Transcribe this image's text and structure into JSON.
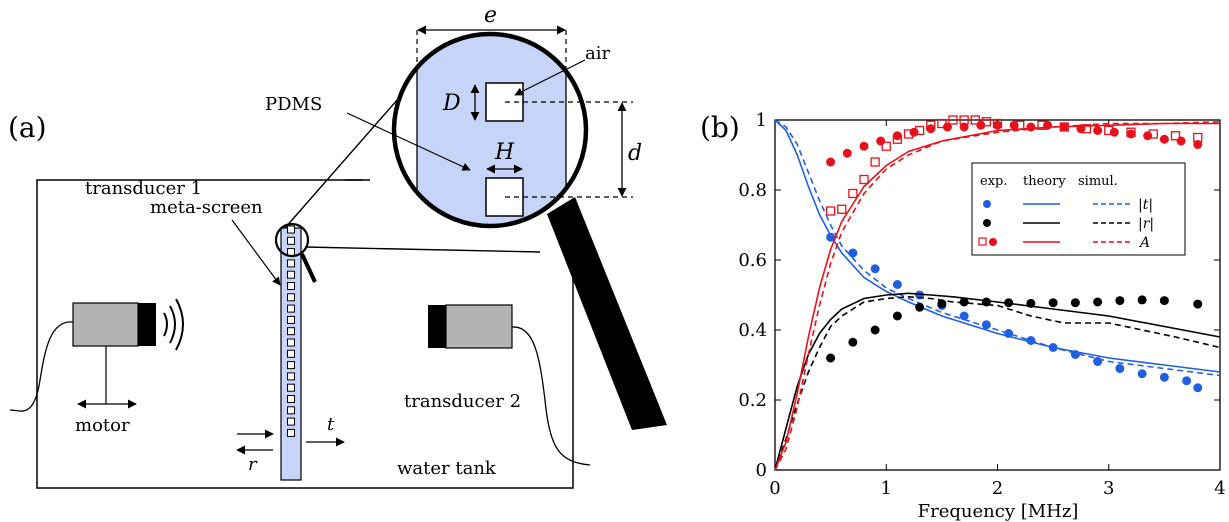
{
  "panel_a": {
    "label": "(a)",
    "labels": {
      "e": "e",
      "air": "air",
      "D": "D",
      "PDMS": "PDMS",
      "H": "H",
      "d": "d",
      "meta_screen": "meta-screen",
      "transducer1": "transducer 1",
      "transducer2": "transducer 2",
      "motor": "motor",
      "t": "t",
      "r": "r",
      "water_tank": "water tank"
    },
    "colors": {
      "pdms_fill": "#c6d5f7",
      "air_fill": "#ffffff",
      "transducer_body": "#b3b3b3",
      "transducer_cap": "#000000"
    }
  },
  "panel_b": {
    "label": "(b)",
    "legend": {
      "header_exp": "exp.",
      "header_theory": "theory",
      "header_simul": "simul.",
      "rows": [
        "|t|",
        "|r|",
        "A"
      ]
    }
  },
  "chart_data": {
    "type": "line",
    "title": "",
    "xlabel": "Frequency [MHz]",
    "ylabel": "",
    "xlim": [
      0,
      4
    ],
    "ylim": [
      0,
      1
    ],
    "xticks": [
      0,
      1,
      2,
      3,
      4
    ],
    "yticks": [
      0,
      0.2,
      0.4,
      0.6,
      0.8,
      1
    ],
    "ytick_labels": [
      "0",
      "0.2",
      "0.4",
      "0.6",
      "0.8",
      "1"
    ],
    "grid": false,
    "legend_position": "top-right",
    "series": [
      {
        "name": "|t|",
        "kind": "theory",
        "style": "solid",
        "color": "#1f5fe0",
        "x": [
          0,
          0.1,
          0.2,
          0.3,
          0.4,
          0.5,
          0.6,
          0.8,
          1.0,
          1.2,
          1.5,
          2.0,
          2.5,
          3.0,
          3.5,
          4.0
        ],
        "y": [
          1.0,
          0.97,
          0.9,
          0.81,
          0.73,
          0.67,
          0.62,
          0.55,
          0.51,
          0.48,
          0.44,
          0.39,
          0.35,
          0.32,
          0.3,
          0.28
        ]
      },
      {
        "name": "|t|",
        "kind": "simul",
        "style": "dashed",
        "color": "#1f5fe0",
        "x": [
          0,
          0.1,
          0.2,
          0.3,
          0.4,
          0.5,
          0.6,
          0.8,
          1.0,
          1.2,
          1.5,
          2.0,
          2.5,
          3.0,
          3.5,
          4.0
        ],
        "y": [
          1.0,
          0.98,
          0.93,
          0.85,
          0.77,
          0.7,
          0.64,
          0.57,
          0.52,
          0.49,
          0.45,
          0.4,
          0.35,
          0.31,
          0.29,
          0.27
        ]
      },
      {
        "name": "|t|",
        "kind": "exp",
        "style": "filled-dot",
        "color": "#1f5fe0",
        "x": [
          0.5,
          0.7,
          0.9,
          1.1,
          1.3,
          1.5,
          1.7,
          1.9,
          2.1,
          2.3,
          2.5,
          2.7,
          2.9,
          3.1,
          3.3,
          3.5,
          3.7,
          3.8
        ],
        "y": [
          0.665,
          0.62,
          0.575,
          0.53,
          0.5,
          0.47,
          0.44,
          0.415,
          0.39,
          0.37,
          0.35,
          0.33,
          0.31,
          0.29,
          0.275,
          0.265,
          0.255,
          0.235
        ]
      },
      {
        "name": "|r|",
        "kind": "theory",
        "style": "solid",
        "color": "#000000",
        "x": [
          0,
          0.1,
          0.2,
          0.3,
          0.4,
          0.5,
          0.6,
          0.8,
          1.0,
          1.2,
          1.4,
          1.6,
          2.0,
          2.5,
          3.0,
          3.5,
          4.0
        ],
        "y": [
          0.0,
          0.12,
          0.24,
          0.33,
          0.39,
          0.43,
          0.46,
          0.49,
          0.5,
          0.505,
          0.5,
          0.495,
          0.48,
          0.46,
          0.44,
          0.41,
          0.38
        ]
      },
      {
        "name": "|r|",
        "kind": "simul",
        "style": "dashed",
        "color": "#000000",
        "x": [
          0,
          0.1,
          0.2,
          0.3,
          0.4,
          0.5,
          0.6,
          0.8,
          1.0,
          1.2,
          1.4,
          1.6,
          2.0,
          2.3,
          2.6,
          3.0,
          3.3,
          3.6,
          4.0
        ],
        "y": [
          0.0,
          0.09,
          0.19,
          0.28,
          0.35,
          0.41,
          0.44,
          0.48,
          0.49,
          0.495,
          0.49,
          0.48,
          0.47,
          0.44,
          0.42,
          0.42,
          0.4,
          0.38,
          0.35
        ]
      },
      {
        "name": "|r|",
        "kind": "exp",
        "style": "filled-dot",
        "color": "#000000",
        "x": [
          0.5,
          0.7,
          0.9,
          1.1,
          1.3,
          1.5,
          1.7,
          1.9,
          2.1,
          2.3,
          2.5,
          2.7,
          2.9,
          3.1,
          3.3,
          3.5,
          3.8
        ],
        "y": [
          0.32,
          0.365,
          0.4,
          0.44,
          0.465,
          0.475,
          0.48,
          0.48,
          0.478,
          0.476,
          0.478,
          0.478,
          0.48,
          0.484,
          0.486,
          0.484,
          0.474
        ]
      },
      {
        "name": "A",
        "kind": "theory",
        "style": "solid",
        "color": "#e8111b",
        "x": [
          0,
          0.1,
          0.2,
          0.3,
          0.4,
          0.5,
          0.6,
          0.8,
          1.0,
          1.2,
          1.5,
          2.0,
          2.5,
          3.0,
          3.5,
          4.0
        ],
        "y": [
          0.0,
          0.08,
          0.22,
          0.38,
          0.52,
          0.63,
          0.71,
          0.81,
          0.87,
          0.91,
          0.94,
          0.97,
          0.98,
          0.985,
          0.99,
          0.99
        ]
      },
      {
        "name": "A",
        "kind": "simul",
        "style": "dashed",
        "color": "#e8111b",
        "x": [
          0,
          0.1,
          0.2,
          0.3,
          0.4,
          0.5,
          0.6,
          0.8,
          1.0,
          1.2,
          1.5,
          2.0,
          2.5,
          3.0,
          3.5,
          4.0
        ],
        "y": [
          0.0,
          0.06,
          0.18,
          0.33,
          0.47,
          0.59,
          0.68,
          0.79,
          0.86,
          0.9,
          0.94,
          0.965,
          0.98,
          0.99,
          0.99,
          0.995
        ]
      },
      {
        "name": "A",
        "kind": "exp",
        "style": "filled-dot",
        "color": "#e8111b",
        "x": [
          0.5,
          0.65,
          0.8,
          0.95,
          1.1,
          1.25,
          1.4,
          1.55,
          1.7,
          1.85,
          2.0,
          2.15,
          2.3,
          2.45,
          2.6,
          2.75,
          2.9,
          3.05,
          3.2,
          3.35,
          3.5,
          3.65,
          3.8
        ],
        "y": [
          0.88,
          0.905,
          0.925,
          0.94,
          0.955,
          0.965,
          0.975,
          0.98,
          0.98,
          0.985,
          0.985,
          0.985,
          0.98,
          0.985,
          0.98,
          0.975,
          0.97,
          0.965,
          0.96,
          0.955,
          0.945,
          0.94,
          0.93
        ]
      },
      {
        "name": "A",
        "kind": "exp",
        "style": "open-square",
        "color": "#e8111b",
        "x": [
          0.5,
          0.6,
          0.7,
          0.8,
          0.9,
          1.0,
          1.1,
          1.2,
          1.3,
          1.4,
          1.5,
          1.6,
          1.7,
          1.8,
          1.9,
          2.0,
          2.2,
          2.4,
          2.6,
          2.8,
          3.0,
          3.2,
          3.4,
          3.6,
          3.8
        ],
        "y": [
          0.74,
          0.745,
          0.79,
          0.83,
          0.88,
          0.925,
          0.945,
          0.96,
          0.97,
          0.985,
          0.99,
          1.0,
          1.0,
          1.0,
          0.995,
          0.99,
          0.985,
          0.985,
          0.98,
          0.975,
          0.97,
          0.965,
          0.96,
          0.955,
          0.95
        ]
      }
    ]
  }
}
